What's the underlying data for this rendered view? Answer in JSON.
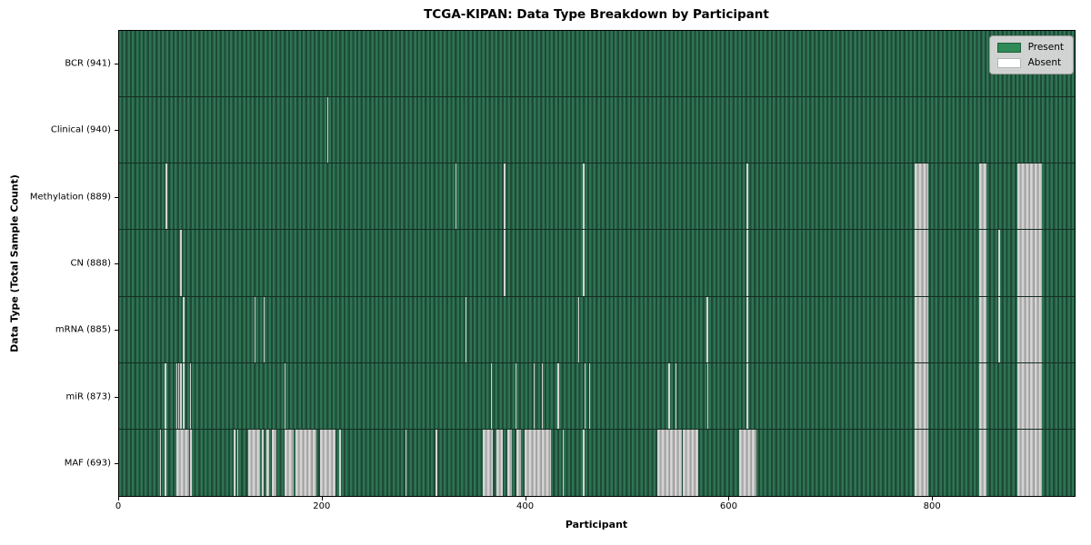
{
  "figure": {
    "title": "TCGA-KIPAN: Data Type Breakdown by Participant",
    "xlabel": "Participant",
    "ylabel": "Data Type (Total Sample Count)"
  },
  "legend": {
    "items": [
      {
        "label": "Present",
        "color": "#2e8b57"
      },
      {
        "label": "Absent",
        "color": "#ffffff"
      }
    ]
  },
  "chart_data": {
    "type": "heatmap",
    "title": "TCGA-KIPAN: Data Type Breakdown by Participant",
    "xlabel": "Participant",
    "ylabel": "Data Type (Total Sample Count)",
    "x_ticks": [
      0,
      200,
      400,
      600,
      800
    ],
    "n_participants": 941,
    "grid": false,
    "legend_position": "upper right",
    "colors": {
      "present": "#2e8b57",
      "absent": "#ffffff",
      "present_dark_edge": "#1e4a37",
      "absent_edge": "#969696"
    },
    "rows": [
      {
        "label": "BCR (941)",
        "data_type": "BCR",
        "sample_count": 941,
        "absent_ranges": []
      },
      {
        "label": "Clinical (940)",
        "data_type": "Clinical",
        "sample_count": 940,
        "absent_ranges": [
          [
            205,
            206
          ]
        ]
      },
      {
        "label": "Methylation (889)",
        "data_type": "Methylation",
        "sample_count": 889,
        "absent_ranges": [
          [
            46,
            47
          ],
          [
            331,
            332
          ],
          [
            379,
            380
          ],
          [
            457,
            458
          ],
          [
            618,
            619
          ],
          [
            783,
            797
          ],
          [
            847,
            854
          ],
          [
            885,
            909
          ]
        ]
      },
      {
        "label": "CN (888)",
        "data_type": "CN",
        "sample_count": 888,
        "absent_ranges": [
          [
            60,
            62
          ],
          [
            379,
            380
          ],
          [
            457,
            458
          ],
          [
            618,
            619
          ],
          [
            783,
            797
          ],
          [
            847,
            854
          ],
          [
            866,
            867
          ],
          [
            885,
            909
          ]
        ]
      },
      {
        "label": "mRNA (885)",
        "data_type": "mRNA",
        "sample_count": 885,
        "absent_ranges": [
          [
            63,
            64
          ],
          [
            133,
            134
          ],
          [
            142,
            143
          ],
          [
            341,
            342
          ],
          [
            452,
            453
          ],
          [
            578,
            580
          ],
          [
            618,
            619
          ],
          [
            783,
            797
          ],
          [
            847,
            854
          ],
          [
            866,
            867
          ],
          [
            885,
            909
          ]
        ]
      },
      {
        "label": "miR (873)",
        "data_type": "miR",
        "sample_count": 873,
        "absent_ranges": [
          [
            45,
            46
          ],
          [
            56,
            57
          ],
          [
            58,
            59
          ],
          [
            60,
            62
          ],
          [
            63,
            64
          ],
          [
            70,
            71
          ],
          [
            163,
            164
          ],
          [
            366,
            367
          ],
          [
            390,
            391
          ],
          [
            408,
            409
          ],
          [
            416,
            417
          ],
          [
            432,
            433
          ],
          [
            458,
            459
          ],
          [
            463,
            464
          ],
          [
            541,
            542
          ],
          [
            548,
            549
          ],
          [
            579,
            580
          ],
          [
            618,
            619
          ],
          [
            783,
            797
          ],
          [
            847,
            854
          ],
          [
            885,
            909
          ]
        ]
      },
      {
        "label": "MAF (693)",
        "data_type": "MAF",
        "sample_count": 693,
        "absent_ranges": [
          [
            40,
            41
          ],
          [
            45,
            47
          ],
          [
            56,
            69
          ],
          [
            70,
            72
          ],
          [
            113,
            114
          ],
          [
            116,
            117
          ],
          [
            127,
            139
          ],
          [
            141,
            142
          ],
          [
            145,
            148
          ],
          [
            150,
            155
          ],
          [
            163,
            172
          ],
          [
            174,
            194
          ],
          [
            198,
            213
          ],
          [
            217,
            218
          ],
          [
            282,
            283
          ],
          [
            312,
            313
          ],
          [
            358,
            368
          ],
          [
            372,
            378
          ],
          [
            382,
            387
          ],
          [
            391,
            396
          ],
          [
            399,
            425
          ],
          [
            437,
            438
          ],
          [
            457,
            458
          ],
          [
            530,
            554
          ],
          [
            555,
            570
          ],
          [
            611,
            628
          ],
          [
            783,
            797
          ],
          [
            847,
            854
          ],
          [
            885,
            909
          ]
        ]
      }
    ]
  }
}
